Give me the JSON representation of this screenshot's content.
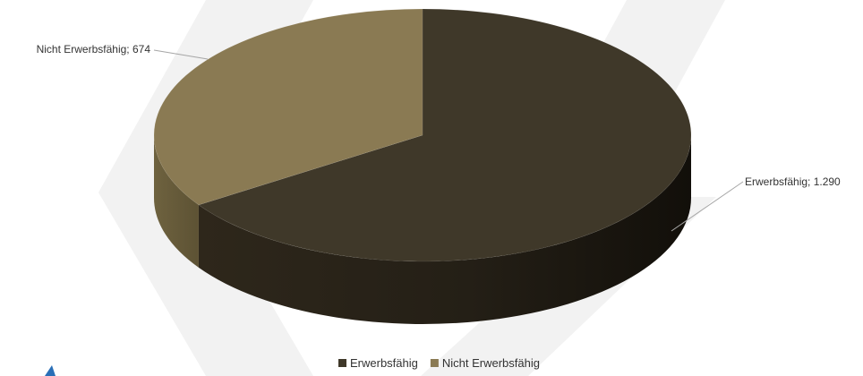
{
  "chart_data": {
    "type": "pie",
    "style": "3d",
    "title": "",
    "categories": [
      "Erwerbsfähig",
      "Nicht Erwerbsfähig"
    ],
    "values": [
      1290,
      674
    ],
    "data_labels": [
      "Erwerbsfähig; 1.290",
      "Nicht Erwerbsfähig; 674"
    ],
    "colors": [
      "#3f3829",
      "#8a7a53"
    ],
    "legend": {
      "position": "bottom",
      "entries": [
        "Erwerbsfähig",
        "Nicht Erwerbsfähig"
      ]
    }
  }
}
